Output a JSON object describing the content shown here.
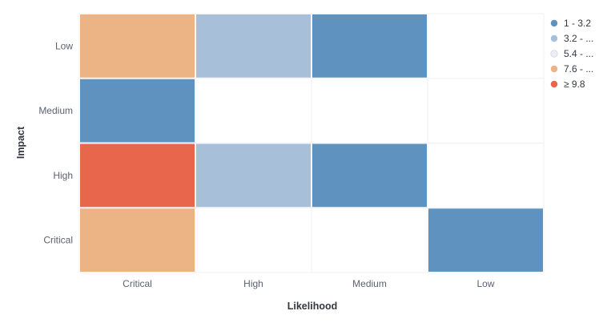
{
  "chart_data": {
    "type": "heatmap",
    "xlabel": "Likelihood",
    "ylabel": "Impact",
    "x_categories": [
      "Critical",
      "High",
      "Medium",
      "Low"
    ],
    "y_categories": [
      "Low",
      "Medium",
      "High",
      "Critical"
    ],
    "cells": [
      {
        "x": "Critical",
        "y": "Low",
        "band": 3
      },
      {
        "x": "High",
        "y": "Low",
        "band": 1
      },
      {
        "x": "Medium",
        "y": "Low",
        "band": 0
      },
      {
        "x": "Critical",
        "y": "Medium",
        "band": 0
      },
      {
        "x": "Critical",
        "y": "High",
        "band": 4
      },
      {
        "x": "High",
        "y": "High",
        "band": 1
      },
      {
        "x": "Medium",
        "y": "High",
        "band": 0
      },
      {
        "x": "Critical",
        "y": "Critical",
        "band": 3
      },
      {
        "x": "Low",
        "y": "Critical",
        "band": 0
      }
    ],
    "legend": {
      "placement": "top-right",
      "items": [
        {
          "label": "1 - 3.2",
          "color": "#6092c0"
        },
        {
          "label": "3.2 - ...",
          "color": "#a8bfda"
        },
        {
          "label": "5.4 - ...",
          "color": "#ebeff5"
        },
        {
          "label": "7.6 - ...",
          "color": "#ecb385"
        },
        {
          "label": "≥ 9.8",
          "color": "#e7664c"
        }
      ]
    },
    "grid": true
  }
}
